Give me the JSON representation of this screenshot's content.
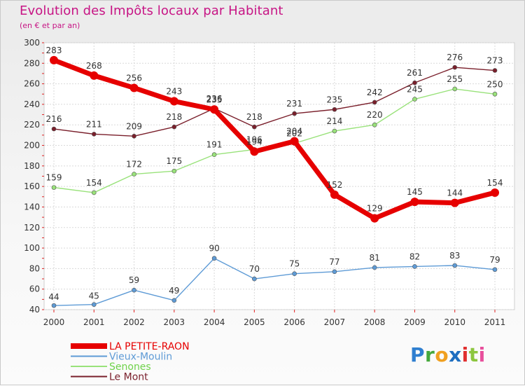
{
  "title": "Evolution des Impôts locaux par Habitant",
  "subtitle": "(en € et par an)",
  "logo": {
    "p": "P",
    "r": "r",
    "o": "o",
    "x": "x",
    "i1": "i",
    "t": "t",
    "i2": "i"
  },
  "chart_data": {
    "type": "line",
    "title": "Evolution des Impôts locaux par Habitant",
    "subtitle": "(en € et par an)",
    "xlabel": "",
    "ylabel": "",
    "x": [
      "2000",
      "2001",
      "2002",
      "2003",
      "2004",
      "2005",
      "2006",
      "2007",
      "2008",
      "2009",
      "2010",
      "2011"
    ],
    "ylim": [
      40,
      300
    ],
    "yticks": [
      40,
      60,
      80,
      100,
      120,
      140,
      160,
      180,
      200,
      220,
      240,
      260,
      280,
      300
    ],
    "grid": true,
    "legend_position": "bottom-left",
    "series": [
      {
        "name": "Le Mont",
        "color": "#7a1f2b",
        "values": [
          216,
          211,
          209,
          218,
          236,
          218,
          231,
          235,
          242,
          261,
          276,
          273
        ]
      },
      {
        "name": "Senones",
        "color": "#99e27a",
        "values": [
          159,
          154,
          172,
          175,
          191,
          196,
          202,
          214,
          220,
          245,
          255,
          250
        ]
      },
      {
        "name": "Vieux-Moulin",
        "color": "#5e9bd6",
        "values": [
          44,
          45,
          59,
          49,
          90,
          70,
          75,
          77,
          81,
          82,
          83,
          79
        ]
      },
      {
        "name": "LA PETITE-RAON",
        "color": "#e60000",
        "values": [
          283,
          268,
          256,
          243,
          235,
          194,
          204,
          152,
          129,
          145,
          144,
          154
        ]
      }
    ],
    "legend_order": [
      "LA PETITE-RAON",
      "Vieux-Moulin",
      "Senones",
      "Le Mont"
    ]
  }
}
